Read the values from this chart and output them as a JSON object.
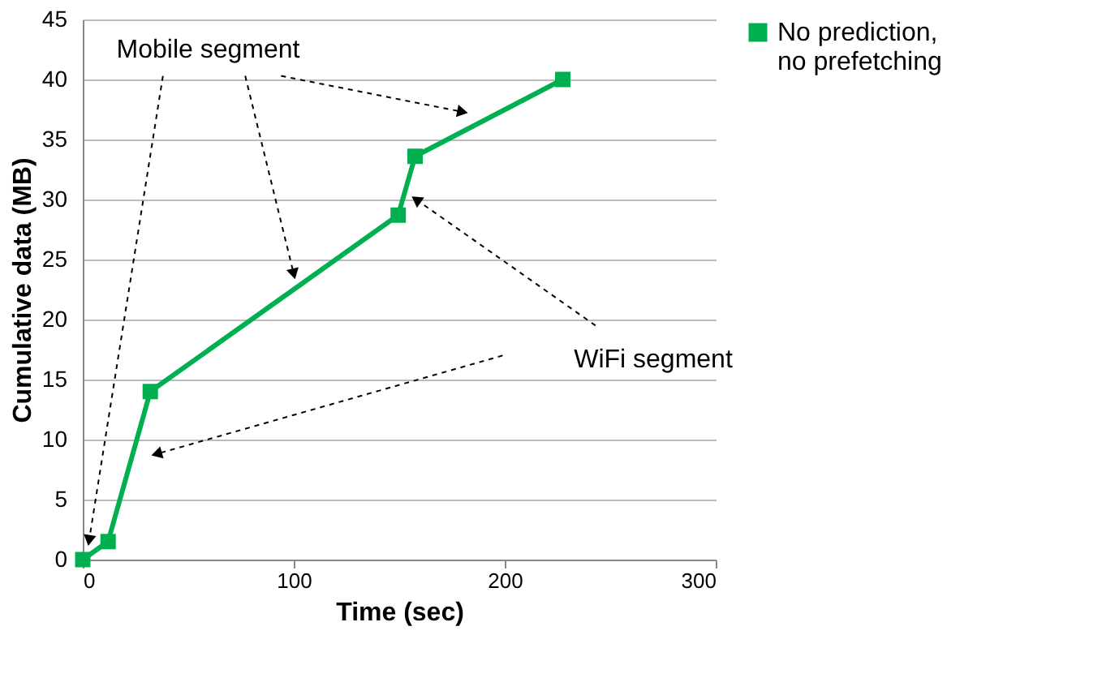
{
  "chart_data": {
    "type": "line",
    "xlabel": "Time (sec)",
    "ylabel": "Cumulative data (MB)",
    "x": [
      0,
      12,
      32,
      149.5,
      157.5,
      227.5
    ],
    "series": [
      {
        "name": "No prediction, no prefetching",
        "color": "#00b050",
        "values": [
          0,
          1.5,
          14,
          28.7,
          33.6,
          40
        ]
      }
    ],
    "xlim": [
      0,
      300
    ],
    "xticks": [
      0,
      100,
      200,
      300
    ],
    "ylim": [
      0,
      45
    ],
    "yticks": [
      0,
      5,
      10,
      15,
      20,
      25,
      30,
      35,
      40,
      45
    ],
    "grid": "y",
    "legend": "right",
    "marker": "square",
    "line_style": "solid",
    "annotations": [
      {
        "text": "Mobile segment",
        "x": 100,
        "y": 23.8
      },
      {
        "text": "WiFi segment",
        "x": 158,
        "y": 30
      }
    ]
  }
}
